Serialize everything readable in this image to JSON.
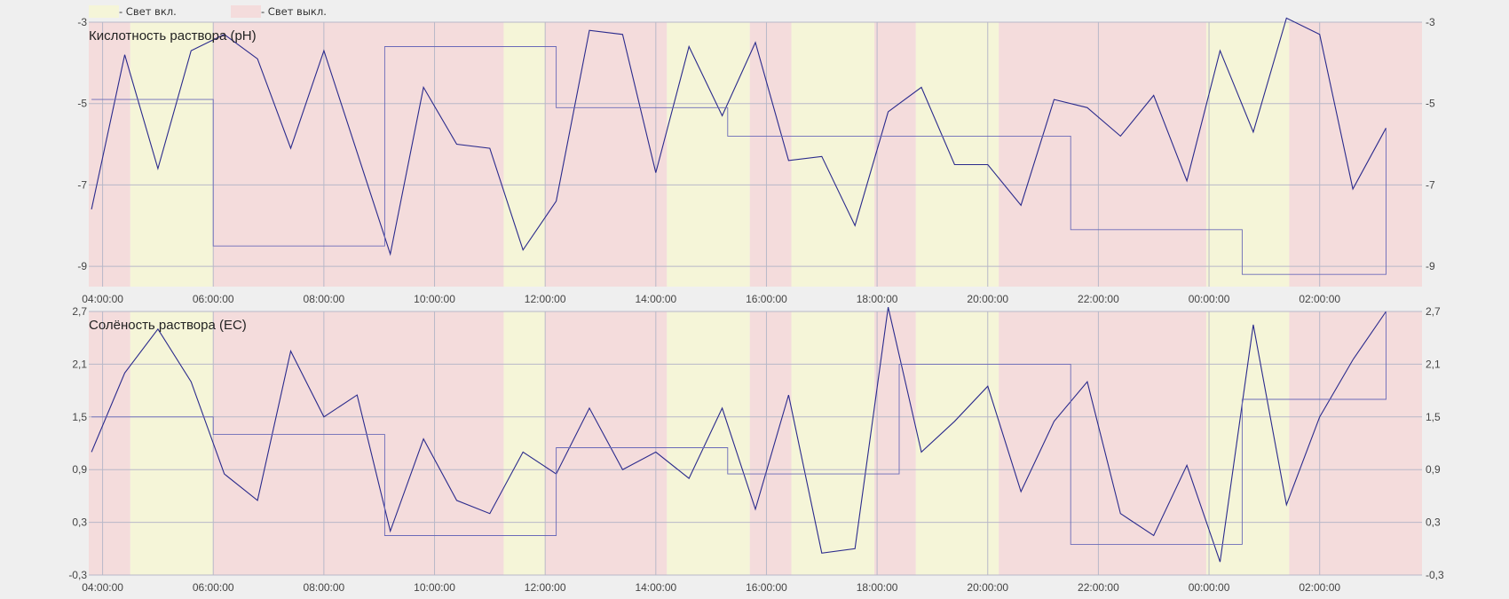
{
  "legend": {
    "items": [
      {
        "label": "- Свет вкл.",
        "color": "#f5f5d8"
      },
      {
        "label": "- Свет выкл.",
        "color": "#f4dcdc"
      }
    ]
  },
  "colors": {
    "light_on": "#f5f5d8",
    "light_off": "#f4dcdc",
    "series_line": "#2a2a8c",
    "setpoint_line": "#6a6ab8",
    "grid": "#b8b8c8",
    "background": "#efefef"
  },
  "chart_data": [
    {
      "type": "line",
      "title": "Кислотность раствора (pH)",
      "x_range_hours": [
        3.75,
        27.85
      ],
      "ylim": [
        -3,
        -9.5
      ],
      "y_ticks": [
        -3,
        -5,
        -7,
        -9
      ],
      "y_tick_labels": [
        "-3",
        "-5",
        "-7",
        "-9"
      ],
      "x_ticks": [
        4,
        6,
        8,
        10,
        12,
        14,
        16,
        18,
        20,
        22,
        24,
        26
      ],
      "x_tick_labels": [
        "04:00:00",
        "06:00:00",
        "08:00:00",
        "10:00:00",
        "12:00:00",
        "14:00:00",
        "16:00:00",
        "18:00:00",
        "20:00:00",
        "22:00:00",
        "00:00:00",
        "02:00:00"
      ],
      "light_periods": [
        {
          "start": 3.75,
          "end": 4.5,
          "state": "off"
        },
        {
          "start": 4.5,
          "end": 6.0,
          "state": "on"
        },
        {
          "start": 6.0,
          "end": 11.25,
          "state": "off"
        },
        {
          "start": 11.25,
          "end": 12.0,
          "state": "on"
        },
        {
          "start": 12.0,
          "end": 14.2,
          "state": "off"
        },
        {
          "start": 14.2,
          "end": 15.7,
          "state": "on"
        },
        {
          "start": 15.7,
          "end": 16.45,
          "state": "off"
        },
        {
          "start": 16.45,
          "end": 17.95,
          "state": "on"
        },
        {
          "start": 17.95,
          "end": 18.7,
          "state": "off"
        },
        {
          "start": 18.7,
          "end": 20.2,
          "state": "on"
        },
        {
          "start": 20.2,
          "end": 23.95,
          "state": "off"
        },
        {
          "start": 23.95,
          "end": 25.45,
          "state": "on"
        },
        {
          "start": 25.45,
          "end": 27.85,
          "state": "off"
        }
      ],
      "series": [
        {
          "name": "measured",
          "style": "line",
          "x": [
            3.8,
            4.4,
            5.0,
            5.6,
            6.2,
            6.8,
            7.4,
            8.0,
            8.6,
            9.2,
            9.8,
            10.4,
            11.0,
            11.6,
            12.2,
            12.8,
            13.4,
            14.0,
            14.6,
            15.2,
            15.8,
            16.4,
            17.0,
            17.6,
            18.2,
            18.8,
            19.4,
            20.0,
            20.6,
            21.2,
            21.8,
            22.4,
            23.0,
            23.6,
            24.2,
            24.8,
            25.4,
            26.0,
            26.6,
            27.2
          ],
          "y": [
            -7.6,
            -3.8,
            -6.6,
            -3.7,
            -3.3,
            -3.9,
            -6.1,
            -3.7,
            -6.2,
            -8.7,
            -4.6,
            -6.0,
            -6.1,
            -8.6,
            -7.4,
            -3.2,
            -3.3,
            -6.7,
            -3.6,
            -5.3,
            -3.5,
            -6.4,
            -6.3,
            -8.0,
            -5.2,
            -4.6,
            -6.5,
            -6.5,
            -7.5,
            -4.9,
            -5.1,
            -5.8,
            -4.8,
            -6.9,
            -3.7,
            -5.7,
            -2.9,
            -3.3,
            -7.1,
            -5.6
          ]
        },
        {
          "name": "setpoint",
          "style": "step",
          "x": [
            3.8,
            6.0,
            6.0,
            9.1,
            9.1,
            12.2,
            12.2,
            15.3,
            15.3,
            18.4,
            18.4,
            21.5,
            21.5,
            24.6,
            24.6,
            27.2,
            27.2
          ],
          "y": [
            -4.9,
            -4.9,
            -8.5,
            -8.5,
            -3.6,
            -3.6,
            -5.1,
            -5.1,
            -5.8,
            -5.8,
            -5.8,
            -5.8,
            -8.1,
            -8.1,
            -9.2,
            -9.2,
            -5.6
          ]
        }
      ]
    },
    {
      "type": "line",
      "title": "Солёность раствора (EC)",
      "x_range_hours": [
        3.75,
        27.85
      ],
      "ylim": [
        2.7,
        -0.3
      ],
      "y_ticks": [
        2.7,
        2.1,
        1.5,
        0.9,
        0.3,
        -0.3
      ],
      "y_tick_labels": [
        "2,7",
        "2,1",
        "1,5",
        "0,9",
        "0,3",
        "-0,3"
      ],
      "x_ticks": [
        4,
        6,
        8,
        10,
        12,
        14,
        16,
        18,
        20,
        22,
        24,
        26
      ],
      "x_tick_labels": [
        "04:00:00",
        "06:00:00",
        "08:00:00",
        "10:00:00",
        "12:00:00",
        "14:00:00",
        "16:00:00",
        "18:00:00",
        "20:00:00",
        "22:00:00",
        "00:00:00",
        "02:00:00"
      ],
      "light_periods": [
        {
          "start": 3.75,
          "end": 4.5,
          "state": "off"
        },
        {
          "start": 4.5,
          "end": 6.0,
          "state": "on"
        },
        {
          "start": 6.0,
          "end": 11.25,
          "state": "off"
        },
        {
          "start": 11.25,
          "end": 12.0,
          "state": "on"
        },
        {
          "start": 12.0,
          "end": 14.2,
          "state": "off"
        },
        {
          "start": 14.2,
          "end": 15.7,
          "state": "on"
        },
        {
          "start": 15.7,
          "end": 16.45,
          "state": "off"
        },
        {
          "start": 16.45,
          "end": 17.95,
          "state": "on"
        },
        {
          "start": 17.95,
          "end": 18.7,
          "state": "off"
        },
        {
          "start": 18.7,
          "end": 20.2,
          "state": "on"
        },
        {
          "start": 20.2,
          "end": 23.95,
          "state": "off"
        },
        {
          "start": 23.95,
          "end": 25.45,
          "state": "on"
        },
        {
          "start": 25.45,
          "end": 27.85,
          "state": "off"
        }
      ],
      "series": [
        {
          "name": "measured",
          "style": "line",
          "x": [
            3.8,
            4.4,
            5.0,
            5.6,
            6.2,
            6.8,
            7.4,
            8.0,
            8.6,
            9.2,
            9.8,
            10.4,
            11.0,
            11.6,
            12.2,
            12.8,
            13.4,
            14.0,
            14.6,
            15.2,
            15.8,
            16.4,
            17.0,
            17.6,
            18.2,
            18.8,
            19.4,
            20.0,
            20.6,
            21.2,
            21.8,
            22.4,
            23.0,
            23.6,
            24.2,
            24.8,
            25.4,
            26.0,
            26.6,
            27.2
          ],
          "y": [
            1.1,
            2.0,
            2.5,
            1.9,
            0.85,
            0.55,
            2.25,
            1.5,
            1.75,
            0.2,
            1.25,
            0.55,
            0.4,
            1.1,
            0.85,
            1.6,
            0.9,
            1.1,
            0.8,
            1.6,
            0.45,
            1.75,
            -0.05,
            0.0,
            2.75,
            1.1,
            1.45,
            1.85,
            0.65,
            1.45,
            1.9,
            0.4,
            0.15,
            0.95,
            -0.15,
            2.55,
            0.5,
            1.5,
            2.15,
            2.7
          ]
        },
        {
          "name": "setpoint",
          "style": "step",
          "x": [
            3.8,
            6.0,
            6.0,
            9.1,
            9.1,
            12.2,
            12.2,
            15.3,
            15.3,
            18.4,
            18.4,
            21.5,
            21.5,
            24.6,
            24.6,
            27.2,
            27.2
          ],
          "y": [
            1.5,
            1.5,
            1.3,
            1.3,
            0.15,
            0.15,
            1.15,
            1.15,
            0.85,
            0.85,
            2.1,
            2.1,
            0.05,
            0.05,
            1.7,
            1.7,
            2.7
          ]
        }
      ]
    }
  ]
}
